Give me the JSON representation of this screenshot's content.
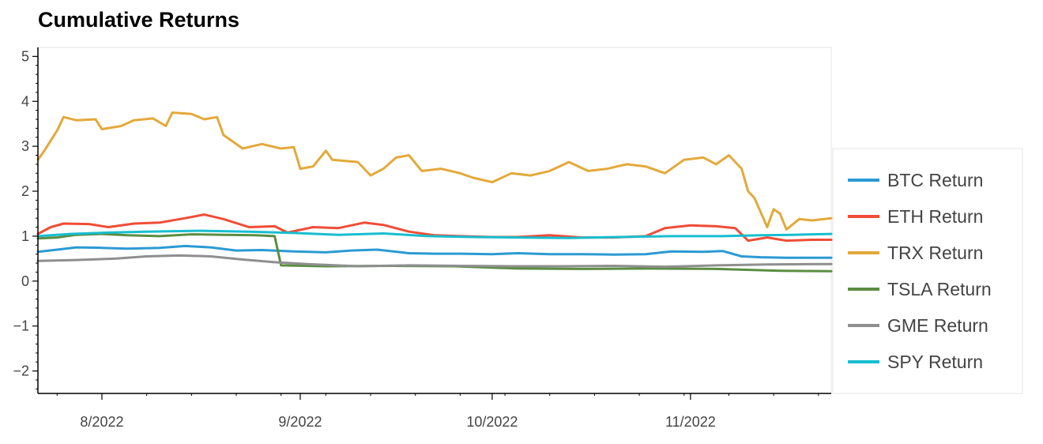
{
  "chart_data": {
    "type": "line",
    "title": "Cumulative Returns",
    "xlabel": "",
    "ylabel": "",
    "ylim": [
      -2.5,
      5.2
    ],
    "xlim": [
      "2022-07-22",
      "2022-11-23"
    ],
    "x_ticks": [
      {
        "date": "2022-08-01",
        "label": "8/2022"
      },
      {
        "date": "2022-09-01",
        "label": "9/2022"
      },
      {
        "date": "2022-10-01",
        "label": "10/2022"
      },
      {
        "date": "2022-11-01",
        "label": "11/2022"
      }
    ],
    "y_ticks": [
      -2,
      -1,
      0,
      1,
      2,
      3,
      4,
      5
    ],
    "y_tick_labels": [
      "−2",
      "−1",
      "0",
      "1",
      "2",
      "3",
      "4",
      "5"
    ],
    "grid": false,
    "legend_position": "right",
    "series": [
      {
        "name": "BTC Return",
        "color": "#2b9ad3",
        "points": [
          [
            "2022-07-22",
            0.65
          ],
          [
            "2022-07-25",
            0.7
          ],
          [
            "2022-07-28",
            0.75
          ],
          [
            "2022-08-01",
            0.74
          ],
          [
            "2022-08-05",
            0.72
          ],
          [
            "2022-08-10",
            0.74
          ],
          [
            "2022-08-14",
            0.78
          ],
          [
            "2022-08-18",
            0.75
          ],
          [
            "2022-08-22",
            0.68
          ],
          [
            "2022-08-26",
            0.69
          ],
          [
            "2022-08-31",
            0.66
          ],
          [
            "2022-09-05",
            0.64
          ],
          [
            "2022-09-09",
            0.68
          ],
          [
            "2022-09-13",
            0.7
          ],
          [
            "2022-09-18",
            0.62
          ],
          [
            "2022-09-22",
            0.61
          ],
          [
            "2022-09-26",
            0.61
          ],
          [
            "2022-10-01",
            0.6
          ],
          [
            "2022-10-05",
            0.62
          ],
          [
            "2022-10-10",
            0.6
          ],
          [
            "2022-10-15",
            0.6
          ],
          [
            "2022-10-20",
            0.59
          ],
          [
            "2022-10-25",
            0.6
          ],
          [
            "2022-10-29",
            0.66
          ],
          [
            "2022-11-03",
            0.65
          ],
          [
            "2022-11-06",
            0.67
          ],
          [
            "2022-11-09",
            0.55
          ],
          [
            "2022-11-12",
            0.53
          ],
          [
            "2022-11-16",
            0.52
          ],
          [
            "2022-11-20",
            0.52
          ],
          [
            "2022-11-23",
            0.52
          ]
        ]
      },
      {
        "name": "ETH Return",
        "color": "#f04d36",
        "points": [
          [
            "2022-07-22",
            1.05
          ],
          [
            "2022-07-24",
            1.2
          ],
          [
            "2022-07-26",
            1.28
          ],
          [
            "2022-07-30",
            1.27
          ],
          [
            "2022-08-02",
            1.2
          ],
          [
            "2022-08-06",
            1.28
          ],
          [
            "2022-08-10",
            1.3
          ],
          [
            "2022-08-14",
            1.4
          ],
          [
            "2022-08-17",
            1.48
          ],
          [
            "2022-08-20",
            1.38
          ],
          [
            "2022-08-24",
            1.2
          ],
          [
            "2022-08-28",
            1.22
          ],
          [
            "2022-08-30",
            1.08
          ],
          [
            "2022-09-03",
            1.2
          ],
          [
            "2022-09-07",
            1.18
          ],
          [
            "2022-09-11",
            1.3
          ],
          [
            "2022-09-14",
            1.25
          ],
          [
            "2022-09-18",
            1.1
          ],
          [
            "2022-09-22",
            1.02
          ],
          [
            "2022-09-26",
            1.0
          ],
          [
            "2022-10-01",
            0.98
          ],
          [
            "2022-10-05",
            0.98
          ],
          [
            "2022-10-10",
            1.02
          ],
          [
            "2022-10-15",
            0.97
          ],
          [
            "2022-10-20",
            0.97
          ],
          [
            "2022-10-25",
            1.0
          ],
          [
            "2022-10-28",
            1.18
          ],
          [
            "2022-11-01",
            1.24
          ],
          [
            "2022-11-05",
            1.22
          ],
          [
            "2022-11-08",
            1.18
          ],
          [
            "2022-11-10",
            0.9
          ],
          [
            "2022-11-13",
            0.97
          ],
          [
            "2022-11-16",
            0.9
          ],
          [
            "2022-11-20",
            0.92
          ],
          [
            "2022-11-23",
            0.92
          ]
        ]
      },
      {
        "name": "TRX Return",
        "color": "#e3a93a",
        "points": [
          [
            "2022-07-22",
            2.7
          ],
          [
            "2022-07-23",
            2.9
          ],
          [
            "2022-07-25",
            3.35
          ],
          [
            "2022-07-26",
            3.65
          ],
          [
            "2022-07-28",
            3.58
          ],
          [
            "2022-07-31",
            3.6
          ],
          [
            "2022-08-01",
            3.38
          ],
          [
            "2022-08-04",
            3.45
          ],
          [
            "2022-08-06",
            3.58
          ],
          [
            "2022-08-09",
            3.62
          ],
          [
            "2022-08-11",
            3.45
          ],
          [
            "2022-08-12",
            3.75
          ],
          [
            "2022-08-15",
            3.72
          ],
          [
            "2022-08-17",
            3.6
          ],
          [
            "2022-08-19",
            3.65
          ],
          [
            "2022-08-20",
            3.25
          ],
          [
            "2022-08-23",
            2.95
          ],
          [
            "2022-08-26",
            3.05
          ],
          [
            "2022-08-29",
            2.95
          ],
          [
            "2022-08-31",
            2.98
          ],
          [
            "2022-09-01",
            2.5
          ],
          [
            "2022-09-03",
            2.55
          ],
          [
            "2022-09-05",
            2.9
          ],
          [
            "2022-09-06",
            2.7
          ],
          [
            "2022-09-10",
            2.65
          ],
          [
            "2022-09-12",
            2.35
          ],
          [
            "2022-09-14",
            2.5
          ],
          [
            "2022-09-16",
            2.75
          ],
          [
            "2022-09-18",
            2.8
          ],
          [
            "2022-09-20",
            2.45
          ],
          [
            "2022-09-23",
            2.5
          ],
          [
            "2022-09-26",
            2.4
          ],
          [
            "2022-09-28",
            2.3
          ],
          [
            "2022-10-01",
            2.2
          ],
          [
            "2022-10-04",
            2.4
          ],
          [
            "2022-10-07",
            2.35
          ],
          [
            "2022-10-10",
            2.45
          ],
          [
            "2022-10-13",
            2.65
          ],
          [
            "2022-10-16",
            2.45
          ],
          [
            "2022-10-19",
            2.5
          ],
          [
            "2022-10-22",
            2.6
          ],
          [
            "2022-10-25",
            2.55
          ],
          [
            "2022-10-28",
            2.4
          ],
          [
            "2022-10-31",
            2.7
          ],
          [
            "2022-11-03",
            2.75
          ],
          [
            "2022-11-05",
            2.6
          ],
          [
            "2022-11-07",
            2.8
          ],
          [
            "2022-11-09",
            2.5
          ],
          [
            "2022-11-10",
            2.0
          ],
          [
            "2022-11-11",
            1.85
          ],
          [
            "2022-11-13",
            1.2
          ],
          [
            "2022-11-14",
            1.6
          ],
          [
            "2022-11-15",
            1.5
          ],
          [
            "2022-11-16",
            1.15
          ],
          [
            "2022-11-18",
            1.38
          ],
          [
            "2022-11-20",
            1.35
          ],
          [
            "2022-11-23",
            1.4
          ]
        ]
      },
      {
        "name": "TSLA Return",
        "color": "#5b8d42",
        "points": [
          [
            "2022-07-22",
            0.95
          ],
          [
            "2022-07-25",
            0.97
          ],
          [
            "2022-07-28",
            1.03
          ],
          [
            "2022-08-01",
            1.05
          ],
          [
            "2022-08-05",
            1.02
          ],
          [
            "2022-08-10",
            1.0
          ],
          [
            "2022-08-15",
            1.04
          ],
          [
            "2022-08-20",
            1.03
          ],
          [
            "2022-08-25",
            1.02
          ],
          [
            "2022-08-28",
            1.0
          ],
          [
            "2022-08-29",
            0.35
          ],
          [
            "2022-09-05",
            0.33
          ],
          [
            "2022-09-15",
            0.34
          ],
          [
            "2022-09-25",
            0.33
          ],
          [
            "2022-10-05",
            0.28
          ],
          [
            "2022-10-15",
            0.27
          ],
          [
            "2022-10-25",
            0.28
          ],
          [
            "2022-11-05",
            0.27
          ],
          [
            "2022-11-15",
            0.23
          ],
          [
            "2022-11-23",
            0.22
          ]
        ]
      },
      {
        "name": "GME Return",
        "color": "#8f8f8f",
        "points": [
          [
            "2022-07-22",
            0.45
          ],
          [
            "2022-07-28",
            0.47
          ],
          [
            "2022-08-03",
            0.5
          ],
          [
            "2022-08-08",
            0.55
          ],
          [
            "2022-08-13",
            0.57
          ],
          [
            "2022-08-18",
            0.55
          ],
          [
            "2022-08-23",
            0.48
          ],
          [
            "2022-08-28",
            0.42
          ],
          [
            "2022-09-02",
            0.38
          ],
          [
            "2022-09-10",
            0.33
          ],
          [
            "2022-09-18",
            0.35
          ],
          [
            "2022-09-26",
            0.34
          ],
          [
            "2022-10-04",
            0.33
          ],
          [
            "2022-10-12",
            0.33
          ],
          [
            "2022-10-20",
            0.34
          ],
          [
            "2022-10-28",
            0.32
          ],
          [
            "2022-11-05",
            0.35
          ],
          [
            "2022-11-13",
            0.37
          ],
          [
            "2022-11-23",
            0.38
          ]
        ]
      },
      {
        "name": "SPY Return",
        "color": "#17becf",
        "points": [
          [
            "2022-07-22",
            1.0
          ],
          [
            "2022-07-27",
            1.05
          ],
          [
            "2022-08-02",
            1.08
          ],
          [
            "2022-08-08",
            1.1
          ],
          [
            "2022-08-16",
            1.12
          ],
          [
            "2022-08-24",
            1.1
          ],
          [
            "2022-08-31",
            1.07
          ],
          [
            "2022-09-07",
            1.03
          ],
          [
            "2022-09-14",
            1.06
          ],
          [
            "2022-09-21",
            1.0
          ],
          [
            "2022-09-28",
            0.98
          ],
          [
            "2022-10-05",
            0.97
          ],
          [
            "2022-10-13",
            0.96
          ],
          [
            "2022-10-21",
            0.98
          ],
          [
            "2022-10-29",
            1.0
          ],
          [
            "2022-11-06",
            1.0
          ],
          [
            "2022-11-12",
            1.02
          ],
          [
            "2022-11-17",
            1.03
          ],
          [
            "2022-11-23",
            1.05
          ]
        ]
      }
    ]
  }
}
